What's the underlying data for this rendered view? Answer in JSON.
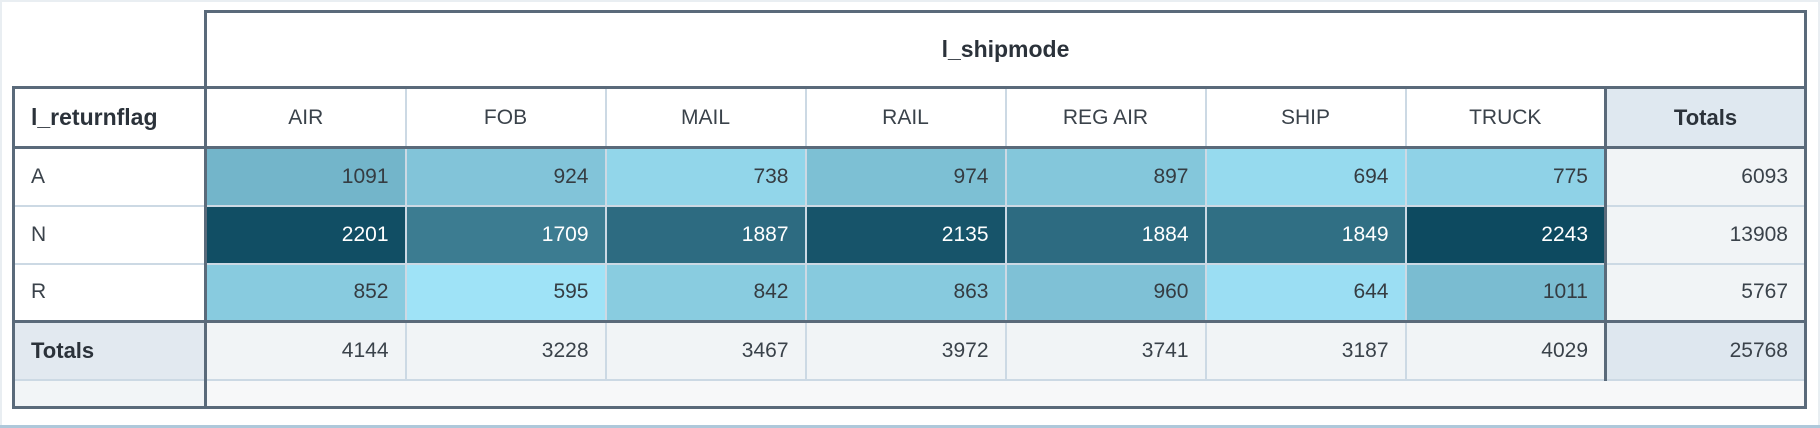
{
  "chart_data": {
    "type": "heatmap",
    "column_dimension_label": "l_shipmode",
    "row_dimension_label": "l_returnflag",
    "totals_label": "Totals",
    "columns": [
      "AIR",
      "FOB",
      "MAIL",
      "RAIL",
      "REG AIR",
      "SHIP",
      "TRUCK"
    ],
    "rows": [
      "A",
      "N",
      "R"
    ],
    "values": [
      [
        1091,
        924,
        738,
        974,
        897,
        694,
        775
      ],
      [
        2201,
        1709,
        1887,
        2135,
        1884,
        1849,
        2243
      ],
      [
        852,
        595,
        842,
        863,
        960,
        644,
        1011
      ]
    ],
    "row_totals": [
      6093,
      13908,
      5767
    ],
    "column_totals": [
      4144,
      3228,
      3467,
      3972,
      3741,
      3187,
      4029
    ],
    "grand_total": 25768,
    "color_scale": {
      "min": 595,
      "max": 2243,
      "light": "#9fe3f7",
      "dark": "#0d4a60",
      "white_text_from": 0.6
    }
  },
  "colors": {
    "border_dark": "#5a6a7a",
    "border_light": "#ccd9e4",
    "totals_header_bg": "#dfe8f0",
    "totals_cell_bg": "#f1f4f6",
    "grand_total_bg": "#dee7ef",
    "empty_row_bg": "#f7f8f9",
    "cell_text_dark": "#353c42",
    "cell_text_light": "#ffffff"
  }
}
